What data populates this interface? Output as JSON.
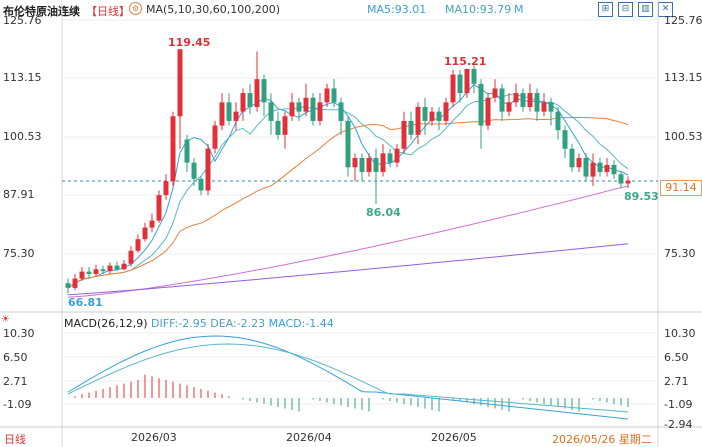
{
  "header": {
    "title": "布伦特原油连续",
    "period": "【日线】",
    "gear_icon": "gear-icon",
    "ma_label": "MA(5,10,30,60,100,200)",
    "ma5": "MA5:93.01",
    "ma10": "MA10:93.79",
    "more": "M"
  },
  "toolbar_icons": [
    "grid-icon",
    "minus-icon",
    "chart-icon",
    "close-icon"
  ],
  "price_axis": {
    "left": [
      "125.76",
      "113.15",
      "100.53",
      "87.91",
      "75.30"
    ],
    "right": [
      "125.76",
      "113.15",
      "100.53",
      "75.30"
    ]
  },
  "annotations": {
    "high1": "119.45",
    "high2": "115.21",
    "low1": "86.04",
    "low2": "66.81",
    "last_low": "89.53",
    "current": "91.14"
  },
  "macd": {
    "label": "MACD(26,12,9)",
    "diff": "DIFF:-2.95",
    "dea": "DEA:-2.23",
    "macd": "MACD:-1.44",
    "axis_left": [
      "10.30",
      "6.50",
      "2.71",
      "-1.09"
    ],
    "axis_right": [
      "10.30",
      "6.50",
      "2.71",
      "-1.09",
      "-2.94"
    ]
  },
  "dates": [
    "2026/03",
    "2026/04",
    "2026/05",
    "2026/05/26 星期二"
  ],
  "bottom_label": "日线",
  "colors": {
    "up": "#e0303a",
    "down": "#30a080",
    "ma5": "#3aa0d8",
    "ma10": "#58b8c8",
    "ma30": "#e8803a",
    "ma60": "#d070d0",
    "ma100": "#9060e0"
  }
}
